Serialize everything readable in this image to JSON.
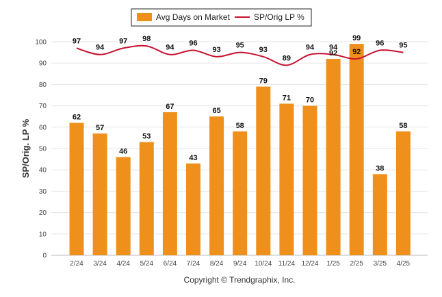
{
  "chart_data": {
    "type": "bar",
    "ylabel": "SP/Orig. LP %",
    "ylim": [
      0,
      100
    ],
    "yticks": [
      0,
      10,
      20,
      30,
      40,
      50,
      60,
      70,
      80,
      90,
      100
    ],
    "categories": [
      "2/24",
      "3/24",
      "4/24",
      "5/24",
      "6/24",
      "7/24",
      "8/24",
      "9/24",
      "10/24",
      "11/24",
      "12/24",
      "1/25",
      "2/25",
      "3/25",
      "4/25"
    ],
    "series": [
      {
        "name": "Avg Days on Market",
        "kind": "bar",
        "color": "#f0901c",
        "values": [
          62,
          57,
          46,
          53,
          67,
          43,
          65,
          58,
          79,
          71,
          70,
          92,
          99,
          38,
          58
        ]
      },
      {
        "name": "SP/Orig LP %",
        "kind": "line",
        "color": "#c8102e",
        "values": [
          97,
          94,
          97,
          98,
          94,
          96,
          93,
          95,
          93,
          89,
          94,
          94,
          92,
          96,
          95
        ]
      }
    ],
    "legend": "top-center",
    "grid": true
  },
  "footer": {
    "copyright": "Copyright © Trendgraphix, Inc."
  }
}
